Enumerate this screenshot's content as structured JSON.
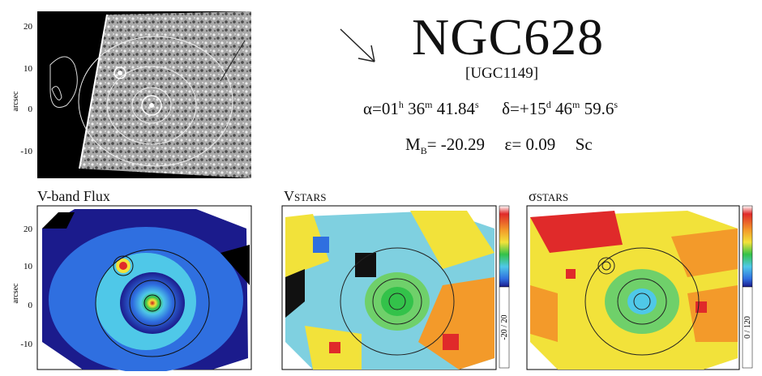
{
  "header": {
    "name": "NGC628",
    "alt_name": "[UGC1149]",
    "ra_alpha": "α=01",
    "ra_h": "h",
    "ra_min": " 36",
    "ra_m": "m",
    "ra_sec": " 41.84",
    "ra_s": "s",
    "dec_delta": "δ=+15",
    "dec_d": "d",
    "dec_min": " 46",
    "dec_m": "m",
    "dec_sec": " 59.6",
    "dec_s": "s",
    "mag_m": "M",
    "mag_sub": "B",
    "mag_val": "= -20.29",
    "eps": "ε= 0.09",
    "type": "Sc"
  },
  "axis": {
    "ylabel": "arcsec",
    "ticks": [
      "20",
      "10",
      "0",
      "-10"
    ]
  },
  "panels": {
    "flux_title": "V-band Flux",
    "vstars_title_v": "V",
    "vstars_title_sub": "STARS",
    "sigma_title_s": "σ",
    "sigma_title_sub": "STARS",
    "vstars_range": "-20 / 20",
    "sigma_range": "0 / 120"
  },
  "colors": {
    "map_dark": "#1b1b8c",
    "map_mid": "#2f6fe0",
    "map_cyan": "#4fc8e8",
    "map_green": "#33c24a",
    "map_yellow": "#f2e23a",
    "map_orange": "#f39a2a",
    "map_red": "#e02a2a"
  }
}
